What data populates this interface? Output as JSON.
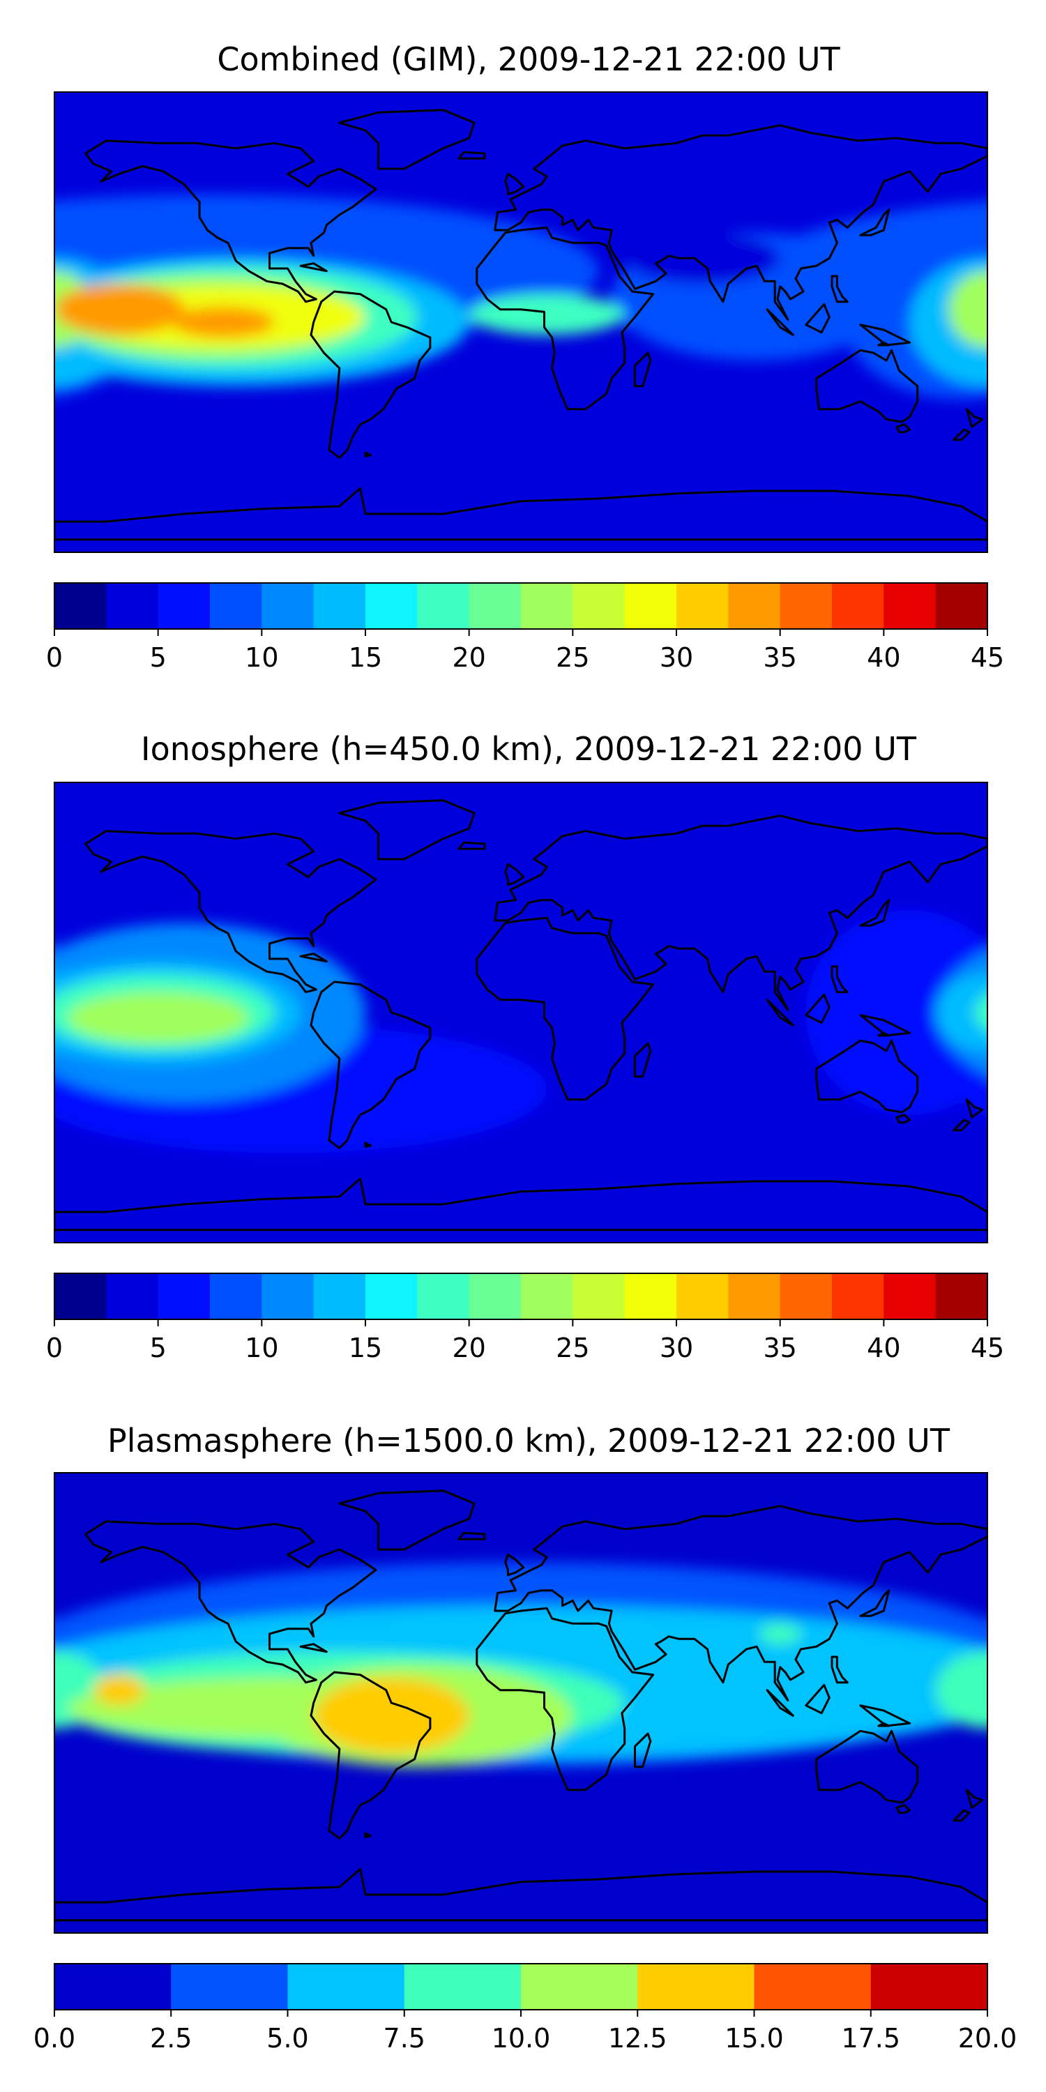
{
  "chart_data": [
    {
      "type": "heatmap",
      "title": "Combined (GIM), 2009-12-21 22:00 UT",
      "colorbar": {
        "min": 0,
        "max": 45,
        "step": 2.5,
        "ticks": [
          "0",
          "5",
          "10",
          "15",
          "20",
          "25",
          "30",
          "35",
          "40",
          "45"
        ],
        "colors": [
          "#00008f",
          "#0000dc",
          "#0010ff",
          "#0050ff",
          "#0088ff",
          "#00bcff",
          "#10f4ff",
          "#3dffc2",
          "#6aff95",
          "#a0ff5c",
          "#c8ff34",
          "#f0ff08",
          "#ffcc00",
          "#ff9a00",
          "#ff6600",
          "#ff3500",
          "#e60000",
          "#a40000"
        ]
      },
      "features": [
        {
          "value": 2.6,
          "lon": -30,
          "lat": 80,
          "rx": 180,
          "ry": 8
        },
        {
          "value": 7.5,
          "lon": -120,
          "lat": 20,
          "rx": 150,
          "ry": 30
        },
        {
          "value": 7.5,
          "lon": 90,
          "lat": 10,
          "rx": 55,
          "ry": 25
        },
        {
          "value": 7.5,
          "lon": 170,
          "lat": 0,
          "rx": 45,
          "ry": 30
        },
        {
          "value": 3.5,
          "lon": 70,
          "lat": 25,
          "rx": 30,
          "ry": 10
        },
        {
          "value": 3.5,
          "lon": 20,
          "lat": -45,
          "rx": 100,
          "ry": 15
        },
        {
          "value": 12.5,
          "lon": -110,
          "lat": 0,
          "rx": 90,
          "ry": 25
        },
        {
          "value": 12.5,
          "lon": 180,
          "lat": 0,
          "rx": 30,
          "ry": 25
        },
        {
          "value": 17.5,
          "lon": -110,
          "lat": 2,
          "rx": 70,
          "ry": 20
        },
        {
          "value": 17.5,
          "lon": 10,
          "lat": 3,
          "rx": 30,
          "ry": 8
        },
        {
          "value": 22.5,
          "lon": -120,
          "lat": 2,
          "rx": 60,
          "ry": 16
        },
        {
          "value": 22.5,
          "lon": 180,
          "lat": 5,
          "rx": 15,
          "ry": 15
        },
        {
          "value": 27.5,
          "lon": -115,
          "lat": 2,
          "rx": 55,
          "ry": 12
        },
        {
          "value": 32.5,
          "lon": -155,
          "lat": 5,
          "rx": 25,
          "ry": 10
        },
        {
          "value": 32.5,
          "lon": -115,
          "lat": 0,
          "rx": 20,
          "ry": 6
        }
      ]
    },
    {
      "type": "heatmap",
      "title": "Ionosphere  (h=450.0 km), 2009-12-21 22:00 UT",
      "colorbar": {
        "min": 0,
        "max": 45,
        "step": 2.5,
        "ticks": [
          "0",
          "5",
          "10",
          "15",
          "20",
          "25",
          "30",
          "35",
          "40",
          "45"
        ],
        "colors": [
          "#00008f",
          "#0000dc",
          "#0010ff",
          "#0050ff",
          "#0088ff",
          "#00bcff",
          "#10f4ff",
          "#3dffc2",
          "#6aff95",
          "#a0ff5c",
          "#c8ff34",
          "#f0ff08",
          "#ffcc00",
          "#ff9a00",
          "#ff6600",
          "#ff3500",
          "#e60000",
          "#a40000"
        ]
      },
      "features": [
        {
          "value": 6,
          "lon": -90,
          "lat": -30,
          "rx": 100,
          "ry": 25
        },
        {
          "value": 6,
          "lon": 150,
          "lat": 0,
          "rx": 40,
          "ry": 40
        },
        {
          "value": 10,
          "lon": -130,
          "lat": 0,
          "rx": 70,
          "ry": 35
        },
        {
          "value": 12.5,
          "lon": -140,
          "lat": 0,
          "rx": 55,
          "ry": 20
        },
        {
          "value": 12.5,
          "lon": 180,
          "lat": 0,
          "rx": 20,
          "ry": 15
        },
        {
          "value": 17.5,
          "lon": -140,
          "lat": 0,
          "rx": 45,
          "ry": 15
        },
        {
          "value": 22.5,
          "lon": -140,
          "lat": -2,
          "rx": 35,
          "ry": 10
        },
        {
          "value": 24,
          "lon": -125,
          "lat": -2,
          "rx": 18,
          "ry": 4
        }
      ]
    },
    {
      "type": "heatmap",
      "title": "Plasmasphere (h=1500.0 km), 2009-12-21 22:00 UT",
      "colorbar": {
        "min": 0,
        "max": 20,
        "step": 2.5,
        "ticks": [
          "0.0",
          "2.5",
          "5.0",
          "7.5",
          "10.0",
          "12.5",
          "15.0",
          "17.5",
          "20.0"
        ],
        "colors": [
          "#0000cc",
          "#0055ff",
          "#00c3ff",
          "#3dffba",
          "#a4ff59",
          "#ffcc00",
          "#ff5500",
          "#cc0000"
        ]
      },
      "features": [
        {
          "value": 3.7,
          "lon": 0,
          "lat": 15,
          "rx": 200,
          "ry": 40
        },
        {
          "value": 6,
          "lon": 0,
          "lat": 8,
          "rx": 200,
          "ry": 30
        },
        {
          "value": 8.5,
          "lon": -70,
          "lat": 0,
          "rx": 110,
          "ry": 20
        },
        {
          "value": 8.5,
          "lon": 180,
          "lat": 5,
          "rx": 20,
          "ry": 15
        },
        {
          "value": 8.5,
          "lon": 100,
          "lat": 27,
          "rx": 8,
          "ry": 4
        },
        {
          "value": 11,
          "lon": -90,
          "lat": -2,
          "rx": 85,
          "ry": 12
        },
        {
          "value": 11,
          "lon": -40,
          "lat": -5,
          "rx": 60,
          "ry": 20
        },
        {
          "value": 14,
          "lon": -50,
          "lat": -5,
          "rx": 30,
          "ry": 15
        },
        {
          "value": 14,
          "lon": -155,
          "lat": 5,
          "rx": 10,
          "ry": 6
        }
      ]
    }
  ]
}
